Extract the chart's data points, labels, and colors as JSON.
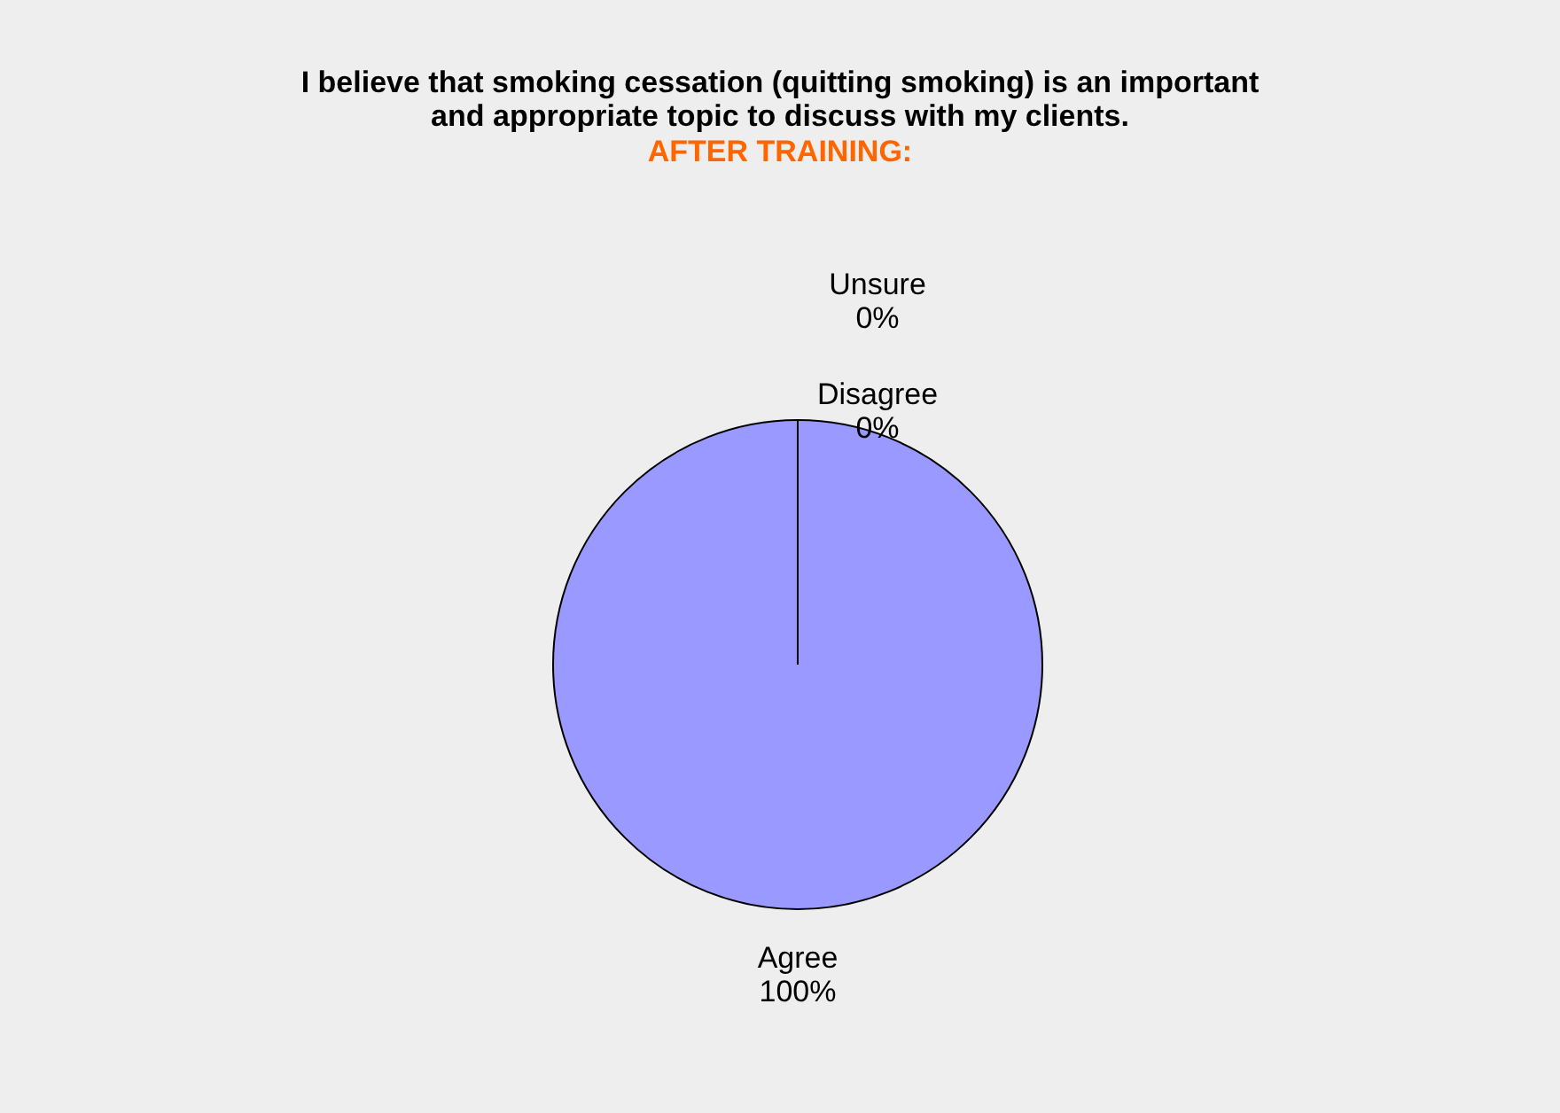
{
  "chart_data": {
    "type": "pie",
    "title": "I believe that smoking cessation (quitting smoking) is an important and appropriate topic to discuss with my clients.",
    "subtitle": "AFTER TRAINING:",
    "categories": [
      "Agree",
      "Disagree",
      "Unsure"
    ],
    "values": [
      100,
      0,
      0
    ],
    "value_labels": [
      "100%",
      "0%",
      "0%"
    ],
    "colors": [
      "#9999ff",
      "#993366",
      "#ffffcc"
    ],
    "legend": false
  }
}
